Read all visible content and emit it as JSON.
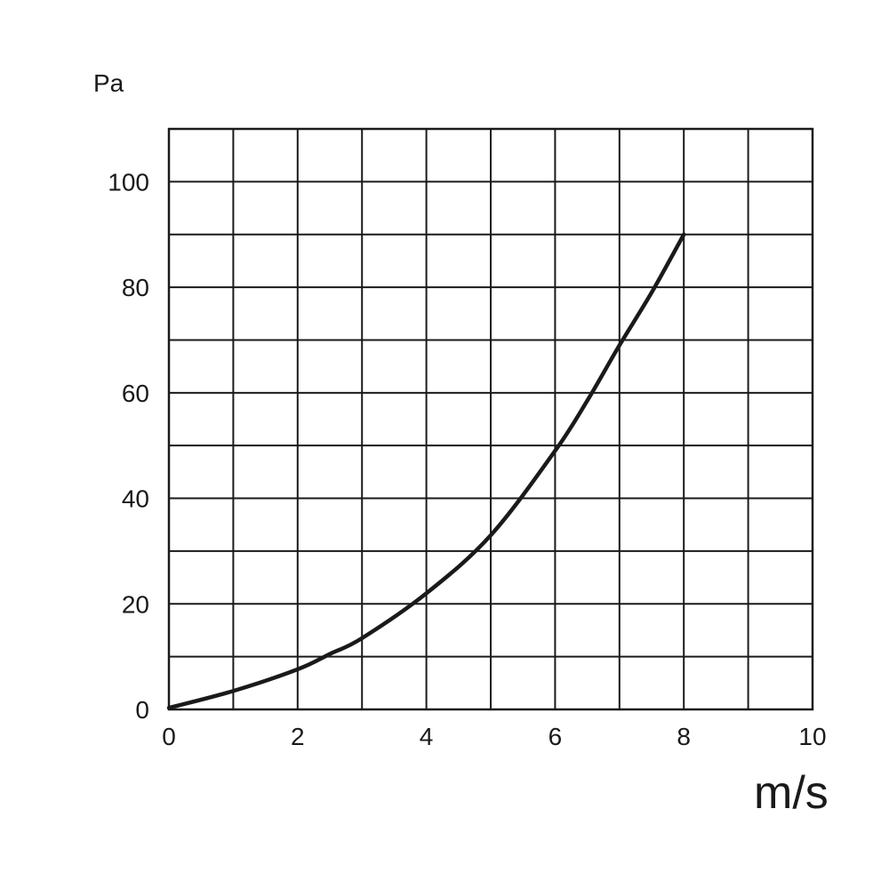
{
  "chart_data": {
    "type": "line",
    "title": "",
    "xlabel": "m/s",
    "ylabel": "Pa",
    "xlim": [
      0,
      10
    ],
    "ylim": [
      0,
      110
    ],
    "grid": true,
    "x_major_step": 1,
    "y_major_step": 10,
    "x_ticks": [
      0,
      2,
      4,
      6,
      8,
      10
    ],
    "y_ticks": [
      0,
      20,
      40,
      60,
      80,
      100
    ],
    "x_tick_labels": [
      "0",
      "2",
      "4",
      "6",
      "8",
      "10"
    ],
    "y_tick_labels": [
      "0",
      "20",
      "40",
      "60",
      "80",
      "100"
    ],
    "line_color": "#1a1a1a",
    "series": [
      {
        "x": [
          0,
          1,
          2,
          2.5,
          3,
          4,
          5,
          6,
          6.5,
          7,
          7.5,
          8
        ],
        "y": [
          0.3,
          3.5,
          7.6,
          10.5,
          13.5,
          22,
          33,
          49,
          58.5,
          69,
          79,
          90
        ]
      }
    ]
  }
}
